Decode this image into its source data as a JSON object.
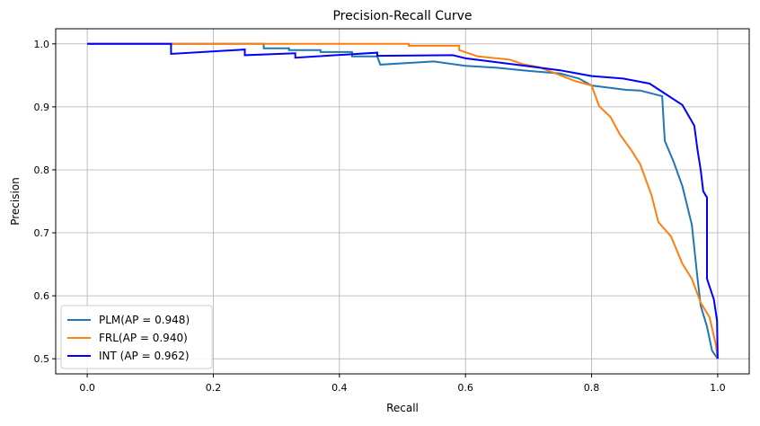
{
  "chart_data": {
    "type": "line",
    "title": "Precision-Recall Curve",
    "xlabel": "Recall",
    "ylabel": "Precision",
    "xlim": [
      -0.05,
      1.05
    ],
    "ylim": [
      0.476,
      1.024
    ],
    "xticks": [
      0.0,
      0.2,
      0.4,
      0.6,
      0.8,
      1.0
    ],
    "xtick_labels": [
      "0.0",
      "0.2",
      "0.4",
      "0.6",
      "0.8",
      "1.0"
    ],
    "yticks": [
      0.5,
      0.6,
      0.7,
      0.8,
      0.9,
      1.0
    ],
    "ytick_labels": [
      "0.5",
      "0.6",
      "0.7",
      "0.8",
      "0.9",
      "1.0"
    ],
    "grid": true,
    "legend_position": "lower-left",
    "series": [
      {
        "name": "PLM(AP = 0.948)",
        "color": "#1f77b4",
        "points": [
          [
            0,
            1
          ],
          [
            0.28,
            1
          ],
          [
            0.28,
            0.993
          ],
          [
            0.32,
            0.993
          ],
          [
            0.32,
            0.99
          ],
          [
            0.37,
            0.99
          ],
          [
            0.37,
            0.987
          ],
          [
            0.42,
            0.987
          ],
          [
            0.42,
            0.98
          ],
          [
            0.46,
            0.98
          ],
          [
            0.465,
            0.967
          ],
          [
            0.55,
            0.972
          ],
          [
            0.6,
            0.965
          ],
          [
            0.65,
            0.962
          ],
          [
            0.7,
            0.957
          ],
          [
            0.75,
            0.953
          ],
          [
            0.78,
            0.945
          ],
          [
            0.8,
            0.934
          ],
          [
            0.855,
            0.927
          ],
          [
            0.877,
            0.926
          ],
          [
            0.912,
            0.917
          ],
          [
            0.916,
            0.846
          ],
          [
            0.93,
            0.813
          ],
          [
            0.944,
            0.774
          ],
          [
            0.959,
            0.713
          ],
          [
            0.968,
            0.627
          ],
          [
            0.973,
            0.584
          ],
          [
            0.983,
            0.551
          ],
          [
            0.991,
            0.513
          ],
          [
            1.0,
            0.5
          ]
        ]
      },
      {
        "name": "FRL(AP = 0.940)",
        "color": "#ff7f0e",
        "points": [
          [
            0,
            1
          ],
          [
            0.51,
            1
          ],
          [
            0.51,
            0.997
          ],
          [
            0.59,
            0.997
          ],
          [
            0.59,
            0.99
          ],
          [
            0.62,
            0.98
          ],
          [
            0.67,
            0.975
          ],
          [
            0.69,
            0.968
          ],
          [
            0.717,
            0.963
          ],
          [
            0.774,
            0.941
          ],
          [
            0.8,
            0.934
          ],
          [
            0.812,
            0.901
          ],
          [
            0.83,
            0.884
          ],
          [
            0.845,
            0.856
          ],
          [
            0.863,
            0.831
          ],
          [
            0.877,
            0.809
          ],
          [
            0.895,
            0.76
          ],
          [
            0.906,
            0.717
          ],
          [
            0.926,
            0.694
          ],
          [
            0.944,
            0.651
          ],
          [
            0.959,
            0.627
          ],
          [
            0.973,
            0.589
          ],
          [
            0.987,
            0.566
          ],
          [
            0.997,
            0.523
          ],
          [
            1.0,
            0.5
          ]
        ]
      },
      {
        "name": "INT (AP = 0.962)",
        "color": "#0000ff",
        "points": [
          [
            0,
            1
          ],
          [
            0.133,
            1
          ],
          [
            0.133,
            0.984
          ],
          [
            0.25,
            0.991
          ],
          [
            0.25,
            0.982
          ],
          [
            0.33,
            0.985
          ],
          [
            0.33,
            0.978
          ],
          [
            0.46,
            0.986
          ],
          [
            0.46,
            0.981
          ],
          [
            0.58,
            0.982
          ],
          [
            0.6,
            0.977
          ],
          [
            0.688,
            0.966
          ],
          [
            0.75,
            0.958
          ],
          [
            0.8,
            0.949
          ],
          [
            0.85,
            0.945
          ],
          [
            0.892,
            0.937
          ],
          [
            0.912,
            0.924
          ],
          [
            0.944,
            0.903
          ],
          [
            0.963,
            0.87
          ],
          [
            0.968,
            0.831
          ],
          [
            0.973,
            0.8
          ],
          [
            0.977,
            0.766
          ],
          [
            0.983,
            0.756
          ],
          [
            0.983,
            0.627
          ],
          [
            0.994,
            0.594
          ],
          [
            0.999,
            0.56
          ],
          [
            1.0,
            0.5
          ]
        ]
      }
    ]
  }
}
